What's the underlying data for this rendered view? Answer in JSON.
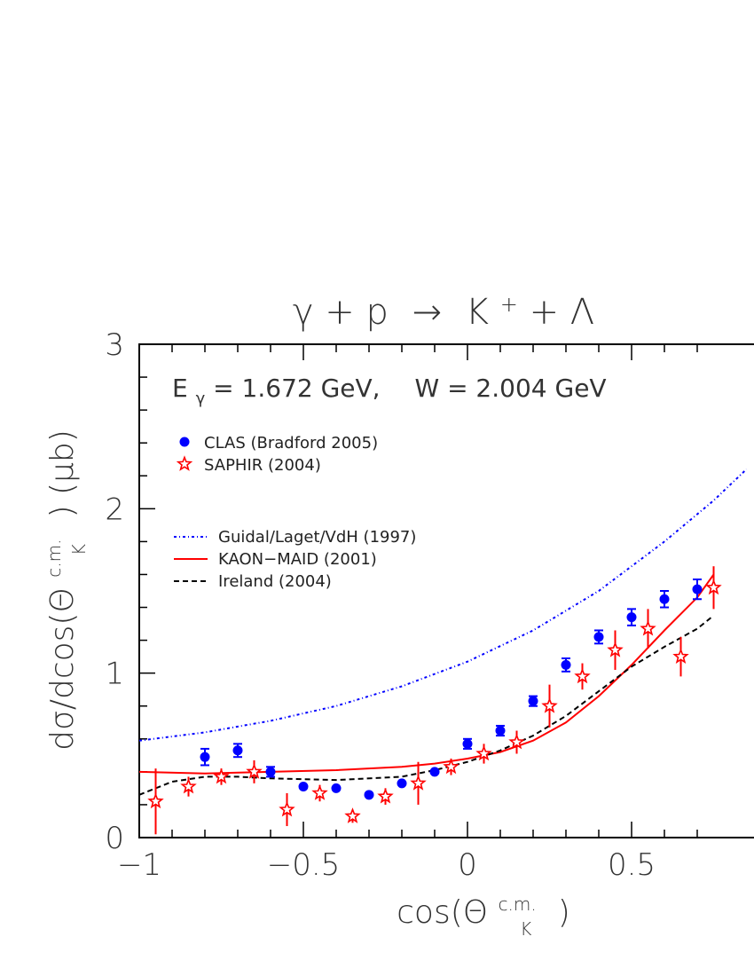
{
  "chart_data": {
    "type": "scatter",
    "title_parts": [
      "γ + p",
      "→",
      "K",
      "+",
      " + Λ"
    ],
    "energy_label": {
      "e_prefix": "E",
      "e_sub": "γ",
      "e_value": " = 1.672 GeV,",
      "w_text": "W = 2.004 GeV"
    },
    "ylabel": "dσ/dcos(Θ",
    "ylabel_sup": "c.m.",
    "ylabel_sub": "K",
    "ylabel_tail": ") (μb)",
    "xlabel": "cos(Θ",
    "xlabel_sup": "c.m.",
    "xlabel_sub": "K",
    "xlabel_tail": ")",
    "xlim": [
      -1,
      0.75
    ],
    "ylim": [
      0,
      3
    ],
    "x_ticks": [
      {
        "value": -1,
        "label": "−1"
      },
      {
        "value": -0.5,
        "label": "−0.5"
      },
      {
        "value": 0,
        "label": "0"
      },
      {
        "value": 0.5,
        "label": "0.5"
      }
    ],
    "y_ticks": [
      {
        "value": 0,
        "label": "0"
      },
      {
        "value": 1,
        "label": "1"
      },
      {
        "value": 2,
        "label": "2"
      },
      {
        "value": 3,
        "label": "3"
      }
    ],
    "colors": {
      "clas": "#0000ff",
      "saphir": "#ff0000",
      "guidal": "#0000ff",
      "maid": "#ff0000",
      "ireland": "#000000"
    },
    "legend_data": [
      {
        "key": "clas",
        "label": "CLAS (Bradford 2005)"
      },
      {
        "key": "saphir",
        "label": "SAPHIR (2004)"
      }
    ],
    "legend_curves": [
      {
        "key": "guidal",
        "label": "Guidal/Laget/VdH (1997)"
      },
      {
        "key": "maid",
        "label": "KAON−MAID (2001)"
      },
      {
        "key": "ireland",
        "label": "Ireland (2004)"
      }
    ],
    "series": [
      {
        "key": "clas",
        "marker": "circle",
        "points": [
          {
            "x": -0.8,
            "y": 0.49,
            "err": 0.05
          },
          {
            "x": -0.7,
            "y": 0.53,
            "err": 0.04
          },
          {
            "x": -0.6,
            "y": 0.4,
            "err": 0.03
          },
          {
            "x": -0.5,
            "y": 0.31,
            "err": 0.0
          },
          {
            "x": -0.4,
            "y": 0.3,
            "err": 0.0
          },
          {
            "x": -0.3,
            "y": 0.26,
            "err": 0.0
          },
          {
            "x": -0.2,
            "y": 0.33,
            "err": 0.0
          },
          {
            "x": -0.1,
            "y": 0.4,
            "err": 0.0
          },
          {
            "x": 0.0,
            "y": 0.57,
            "err": 0.03
          },
          {
            "x": 0.1,
            "y": 0.65,
            "err": 0.03
          },
          {
            "x": 0.2,
            "y": 0.83,
            "err": 0.03
          },
          {
            "x": 0.3,
            "y": 1.05,
            "err": 0.04
          },
          {
            "x": 0.4,
            "y": 1.22,
            "err": 0.04
          },
          {
            "x": 0.5,
            "y": 1.34,
            "err": 0.05
          },
          {
            "x": 0.6,
            "y": 1.45,
            "err": 0.05
          },
          {
            "x": 0.7,
            "y": 1.51,
            "err": 0.06
          }
        ]
      },
      {
        "key": "saphir",
        "marker": "star",
        "points": [
          {
            "x": -0.95,
            "y": 0.22,
            "err": 0.2
          },
          {
            "x": -0.85,
            "y": 0.31,
            "err": 0.06
          },
          {
            "x": -0.75,
            "y": 0.37,
            "err": 0.05
          },
          {
            "x": -0.65,
            "y": 0.4,
            "err": 0.07
          },
          {
            "x": -0.55,
            "y": 0.17,
            "err": 0.1
          },
          {
            "x": -0.45,
            "y": 0.27,
            "err": 0.05
          },
          {
            "x": -0.35,
            "y": 0.13,
            "err": 0.04
          },
          {
            "x": -0.25,
            "y": 0.25,
            "err": 0.05
          },
          {
            "x": -0.15,
            "y": 0.33,
            "err": 0.13
          },
          {
            "x": -0.05,
            "y": 0.43,
            "err": 0.05
          },
          {
            "x": 0.05,
            "y": 0.51,
            "err": 0.06
          },
          {
            "x": 0.15,
            "y": 0.58,
            "err": 0.07
          },
          {
            "x": 0.25,
            "y": 0.8,
            "err": 0.13
          },
          {
            "x": 0.35,
            "y": 0.98,
            "err": 0.08
          },
          {
            "x": 0.45,
            "y": 1.14,
            "err": 0.12
          },
          {
            "x": 0.55,
            "y": 1.27,
            "err": 0.12
          },
          {
            "x": 0.65,
            "y": 1.1,
            "err": 0.12
          },
          {
            "x": 0.75,
            "y": 1.52,
            "err": 0.13
          }
        ]
      }
    ],
    "curves": [
      {
        "key": "guidal",
        "style": "dashdot",
        "points": [
          [
            -1,
            0.59
          ],
          [
            -0.8,
            0.64
          ],
          [
            -0.6,
            0.71
          ],
          [
            -0.4,
            0.8
          ],
          [
            -0.2,
            0.92
          ],
          [
            0,
            1.07
          ],
          [
            0.2,
            1.26
          ],
          [
            0.4,
            1.5
          ],
          [
            0.6,
            1.8
          ],
          [
            0.75,
            2.05
          ],
          [
            0.85,
            2.24
          ]
        ]
      },
      {
        "key": "maid",
        "style": "solid",
        "points": [
          [
            -1,
            0.4
          ],
          [
            -0.8,
            0.39
          ],
          [
            -0.6,
            0.4
          ],
          [
            -0.4,
            0.41
          ],
          [
            -0.2,
            0.43
          ],
          [
            -0.1,
            0.45
          ],
          [
            0,
            0.48
          ],
          [
            0.1,
            0.52
          ],
          [
            0.2,
            0.59
          ],
          [
            0.3,
            0.7
          ],
          [
            0.4,
            0.86
          ],
          [
            0.5,
            1.05
          ],
          [
            0.6,
            1.26
          ],
          [
            0.7,
            1.46
          ],
          [
            0.75,
            1.6
          ]
        ]
      },
      {
        "key": "ireland",
        "style": "dashed",
        "points": [
          [
            -1,
            0.26
          ],
          [
            -0.9,
            0.34
          ],
          [
            -0.8,
            0.37
          ],
          [
            -0.7,
            0.37
          ],
          [
            -0.6,
            0.36
          ],
          [
            -0.4,
            0.35
          ],
          [
            -0.2,
            0.37
          ],
          [
            -0.1,
            0.41
          ],
          [
            0,
            0.46
          ],
          [
            0.1,
            0.53
          ],
          [
            0.2,
            0.62
          ],
          [
            0.3,
            0.74
          ],
          [
            0.4,
            0.89
          ],
          [
            0.5,
            1.04
          ],
          [
            0.6,
            1.16
          ],
          [
            0.7,
            1.27
          ],
          [
            0.75,
            1.35
          ]
        ]
      }
    ]
  }
}
